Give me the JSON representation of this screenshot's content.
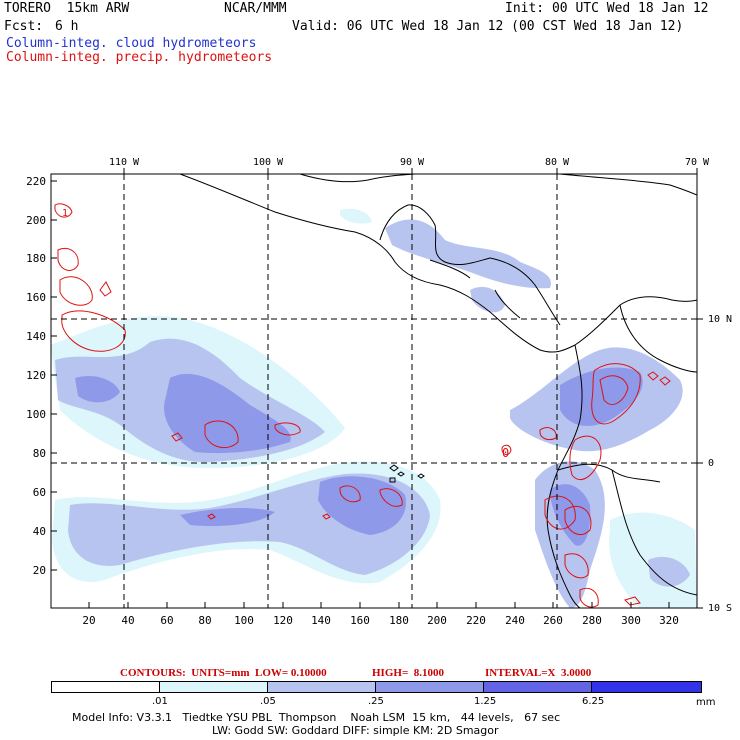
{
  "header": {
    "model_title": "TORERO  15km ARW",
    "org": "NCAR/MMM",
    "init": "Init: 00 UTC Wed 18 Jan 12",
    "fcst_label": "Fcst:",
    "fcst_value": "6 h",
    "valid": "Valid: 06 UTC Wed 18 Jan 12 (00 CST Wed 18 Jan 12)",
    "field_cloud": "Column-integ. cloud hydrometeors",
    "field_precip": "Column-integ. precip. hydrometeors"
  },
  "colors": {
    "cloud_text": "#2233cc",
    "precip_text": "#dd1111",
    "land_line": "#000000",
    "grid_line": "#000000",
    "precip_contour": "#dd1111"
  },
  "axes": {
    "top_lon_labels": [
      "110 W",
      "100 W",
      "90 W",
      "80 W",
      "70 W"
    ],
    "right_lat_labels": [
      "10 N",
      "0",
      "10 S"
    ],
    "left_y_ticks": [
      "220",
      "200",
      "180",
      "160",
      "140",
      "120",
      "100",
      "80",
      "60",
      "40",
      "20"
    ],
    "bottom_x_ticks": [
      "20",
      "40",
      "60",
      "80",
      "100",
      "120",
      "140",
      "160",
      "180",
      "200",
      "220",
      "240",
      "260",
      "280",
      "300",
      "320"
    ],
    "contour_marker_label": "1",
    "contour_marker_zero": "0"
  },
  "contours_note": {
    "units": "CONTOURS:  UNITS=mm  LOW= 0.10000",
    "high": "HIGH=  8.1000",
    "interval": "INTERVAL=X  3.0000"
  },
  "legend": {
    "bins": [
      {
        "label": "",
        "color": "#ffffff"
      },
      {
        "label": ".01",
        "color": "#ddf6fb"
      },
      {
        "label": ".05",
        "color": "#b8c4f0"
      },
      {
        "label": ".25",
        "color": "#8f99ea"
      },
      {
        "label": "1.25",
        "color": "#6363e6"
      },
      {
        "label": "6.25",
        "color": "#3232e6"
      }
    ],
    "unit": "mm"
  },
  "footer": {
    "line1": "Model Info: V3.3.1   Tiedtke YSU PBL  Thompson    Noah LSM  15 km,   44 levels,   67 sec",
    "line2": "LW: Godd SW: Goddard DIFF: simple KM: 2D Smagor"
  }
}
